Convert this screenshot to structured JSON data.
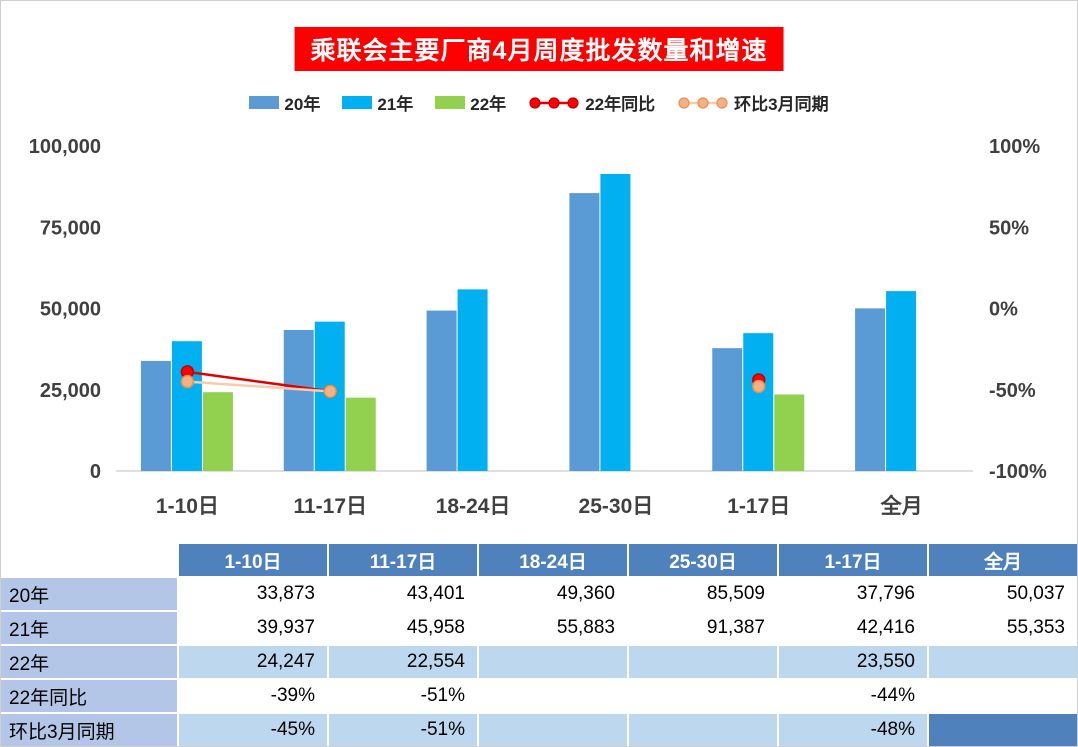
{
  "title": "乘联会主要厂商4月周度批发数量和增速",
  "legend": [
    {
      "label": "20年",
      "type": "bar",
      "color": "#5b9bd5"
    },
    {
      "label": "21年",
      "type": "bar",
      "color": "#00b0f0"
    },
    {
      "label": "22年",
      "type": "bar",
      "color": "#92d050"
    },
    {
      "label": "22年同比",
      "type": "line",
      "color": "#ff0000",
      "line_color": "#e00000",
      "dot_stroke": "#c00000"
    },
    {
      "label": "环比3月同期",
      "type": "line",
      "color": "#f4b183",
      "line_color": "#f8cbad",
      "dot_stroke": "#e59150"
    }
  ],
  "chart_data": {
    "type": "combo-bar-line",
    "categories": [
      "1-10日",
      "11-17日",
      "18-24日",
      "25-30日",
      "1-17日",
      "全月"
    ],
    "bar_series": [
      {
        "name": "20年",
        "color": "#5b9bd5",
        "values": [
          33873,
          43401,
          49360,
          85509,
          37796,
          50037
        ]
      },
      {
        "name": "21年",
        "color": "#00b0f0",
        "values": [
          39937,
          45958,
          55883,
          91387,
          42416,
          55353
        ]
      },
      {
        "name": "22年",
        "color": "#92d050",
        "values": [
          24247,
          22554,
          null,
          null,
          23550,
          null
        ]
      }
    ],
    "line_series": [
      {
        "name": "22年同比",
        "color": "#ff0000",
        "line_color": "#e00000",
        "dot_stroke": "#c00000",
        "values_pct": [
          -39,
          -51,
          null,
          null,
          -44,
          null
        ]
      },
      {
        "name": "环比3月同期",
        "color": "#f4b183",
        "line_color": "#f8cbad",
        "dot_stroke": "#e59150",
        "values_pct": [
          -45,
          -51,
          null,
          null,
          -48,
          null
        ]
      }
    ],
    "left_axis": {
      "min": 0,
      "max": 100000,
      "ticks_bottom_to_top": [
        "0",
        "25,000",
        "50,000",
        "75,000",
        "100,000"
      ]
    },
    "right_axis": {
      "min": -100,
      "max": 100,
      "ticks_bottom_to_top": [
        "-100%",
        "-50%",
        "0%",
        "50%",
        "100%"
      ]
    },
    "grid": false,
    "legend_position": "top"
  },
  "table": {
    "col_headers": [
      "",
      "1-10日",
      "11-17日",
      "18-24日",
      "25-30日",
      "1-17日",
      "全月"
    ],
    "rows": [
      {
        "label": "20年",
        "cells": [
          "33,873",
          "43,401",
          "49,360",
          "85,509",
          "37,796",
          "50,037"
        ]
      },
      {
        "label": "21年",
        "cells": [
          "39,937",
          "45,958",
          "55,883",
          "91,387",
          "42,416",
          "55,353"
        ]
      },
      {
        "label": "22年",
        "cells": [
          "24,247",
          "22,554",
          "",
          "",
          "23,550",
          ""
        ]
      },
      {
        "label": "22年同比",
        "cells": [
          "-39%",
          "-51%",
          "",
          "",
          "-44%",
          ""
        ]
      },
      {
        "label": "环比3月同期",
        "cells": [
          "-45%",
          "-51%",
          "",
          "",
          "-48%",
          ""
        ]
      }
    ]
  }
}
